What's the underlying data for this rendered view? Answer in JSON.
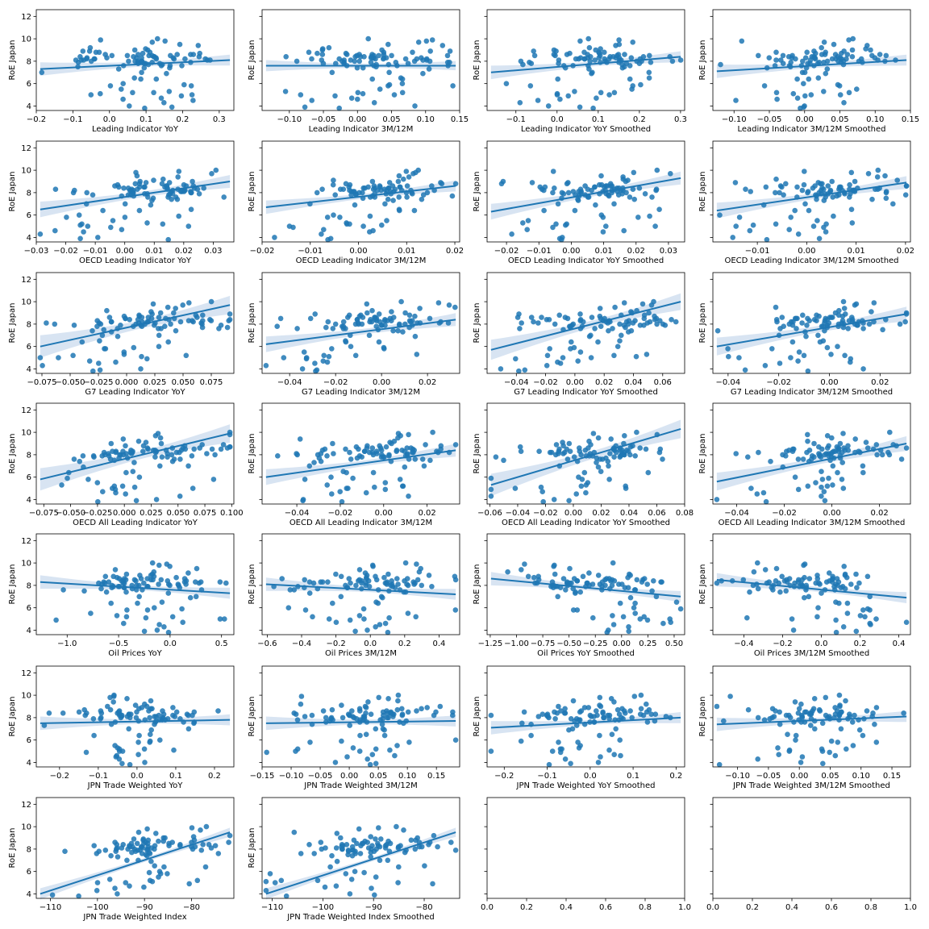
{
  "chart_data": {
    "type": "scatter",
    "grid": false,
    "series_color": "#1f77b4",
    "band_color": "#c8d9ec",
    "shared_ylabel": "RoE Japan",
    "shared_ylim": [
      3.6,
      12.6
    ],
    "shared_yticks": [
      4,
      6,
      8,
      10,
      12
    ],
    "panels": [
      {
        "xlabel": "Leading Indicator YoY",
        "xlim": [
          -0.2,
          0.34
        ],
        "xticks": [
          -0.2,
          -0.1,
          0.0,
          0.1,
          0.2,
          0.3
        ],
        "xticklabels": [
          "−0.2",
          "−0.1",
          "0.0",
          "0.1",
          "0.2",
          "0.3"
        ],
        "fit": [
          7.3,
          8.1
        ],
        "band": 0.6
      },
      {
        "xlabel": "Leading Indicator 3M/12M",
        "xlim": [
          -0.14,
          0.15
        ],
        "xticks": [
          -0.1,
          -0.05,
          0.0,
          0.05,
          0.1,
          0.15
        ],
        "xticklabels": [
          "−0.10",
          "−0.05",
          "0.00",
          "0.05",
          "0.10",
          "0.15"
        ],
        "fit": [
          7.6,
          7.6
        ],
        "band": 0.5
      },
      {
        "xlabel": "Leading Indicator YoY Smoothed",
        "xlim": [
          -0.17,
          0.31
        ],
        "xticks": [
          -0.1,
          0.0,
          0.1,
          0.2,
          0.3
        ],
        "xticklabels": [
          "−0.1",
          "0.0",
          "0.1",
          "0.2",
          "0.3"
        ],
        "fit": [
          7.0,
          8.4
        ],
        "band": 0.6
      },
      {
        "xlabel": "Leading Indicator 3M/12M Smoothed",
        "xlim": [
          -0.13,
          0.15
        ],
        "xticks": [
          -0.1,
          -0.05,
          0.0,
          0.05,
          0.1,
          0.15
        ],
        "xticklabels": [
          "−0.10",
          "−0.05",
          "0.00",
          "0.05",
          "0.10",
          "0.15"
        ],
        "fit": [
          7.1,
          8.1
        ],
        "band": 0.6
      },
      {
        "xlabel": "OECD Leading Indicator YoY",
        "xlim": [
          -0.03,
          0.037
        ],
        "xticks": [
          -0.03,
          -0.02,
          -0.01,
          0.0,
          0.01,
          0.02,
          0.03
        ],
        "xticklabels": [
          "−0.03",
          "−0.02",
          "−0.01",
          "0.00",
          "0.01",
          "0.02",
          "0.03"
        ],
        "fit": [
          6.5,
          9.0
        ],
        "band": 0.7
      },
      {
        "xlabel": "OECD Leading Indicator 3M/12M",
        "xlim": [
          -0.02,
          0.021
        ],
        "xticks": [
          -0.02,
          -0.01,
          0.0,
          0.01,
          0.02
        ],
        "xticklabels": [
          "−0.02",
          "−0.01",
          "0.00",
          "0.01",
          "0.02"
        ],
        "fit": [
          6.7,
          8.6
        ],
        "band": 0.6
      },
      {
        "xlabel": "OECD Leading Indicator YoY Smoothed",
        "xlim": [
          -0.026,
          0.035
        ],
        "xticks": [
          -0.02,
          -0.01,
          0.0,
          0.01,
          0.02,
          0.03
        ],
        "xticklabels": [
          "−0.02",
          "−0.01",
          "0.00",
          "0.01",
          "0.02",
          "0.03"
        ],
        "fit": [
          6.3,
          9.3
        ],
        "band": 0.7
      },
      {
        "xlabel": "OECD Leading Indicator 3M/12M Smoothed",
        "xlim": [
          -0.019,
          0.021
        ],
        "xticks": [
          -0.01,
          0.0,
          0.01,
          0.02
        ],
        "xticklabels": [
          "−0.01",
          "0.00",
          "0.01",
          "0.02"
        ],
        "fit": [
          6.4,
          8.9
        ],
        "band": 0.7
      },
      {
        "xlabel": "G7 Leading Indicator YoY",
        "xlim": [
          -0.08,
          0.095
        ],
        "xticks": [
          -0.075,
          -0.05,
          -0.025,
          0.0,
          0.025,
          0.05,
          0.075
        ],
        "xticklabels": [
          "−0.075",
          "−0.050",
          "−0.025",
          "0.000",
          "0.025",
          "0.050",
          "0.075"
        ],
        "fit": [
          6.0,
          9.7
        ],
        "band": 1.0
      },
      {
        "xlabel": "G7 Leading Indicator 3M/12M",
        "xlim": [
          -0.052,
          0.034
        ],
        "xticks": [
          -0.04,
          -0.02,
          0.0,
          0.02
        ],
        "xticklabels": [
          "−0.04",
          "−0.02",
          "0.00",
          "0.02"
        ],
        "fit": [
          6.2,
          8.4
        ],
        "band": 0.7
      },
      {
        "xlabel": "G7 Leading Indicator YoY Smoothed",
        "xlim": [
          -0.06,
          0.075
        ],
        "xticks": [
          -0.04,
          -0.02,
          0.0,
          0.02,
          0.04,
          0.06
        ],
        "xticklabels": [
          "−0.04",
          "−0.02",
          "0.00",
          "0.02",
          "0.04",
          "0.06"
        ],
        "fit": [
          5.7,
          10.0
        ],
        "band": 0.9
      },
      {
        "xlabel": "G7 Leading Indicator 3M/12M Smoothed",
        "xlim": [
          -0.046,
          0.032
        ],
        "xticks": [
          -0.04,
          -0.02,
          0.0,
          0.02
        ],
        "xticklabels": [
          "−0.04",
          "−0.02",
          "0.00",
          "0.02"
        ],
        "fit": [
          6.0,
          8.9
        ],
        "band": 0.8
      },
      {
        "xlabel": "OECD All Leading Indicator YoY",
        "xlim": [
          -0.082,
          0.102
        ],
        "xticks": [
          -0.075,
          -0.05,
          -0.025,
          0.0,
          0.025,
          0.05,
          0.075,
          0.1
        ],
        "xticklabels": [
          "−0.075",
          "−0.050",
          "−0.025",
          "0.000",
          "0.025",
          "0.050",
          "0.075",
          "0.100"
        ],
        "fit": [
          5.8,
          9.9
        ],
        "band": 1.0
      },
      {
        "xlabel": "OECD All Leading Indicator 3M/12M",
        "xlim": [
          -0.056,
          0.035
        ],
        "xticks": [
          -0.04,
          -0.02,
          0.0,
          0.02
        ],
        "xticklabels": [
          "−0.04",
          "−0.02",
          "0.00",
          "0.02"
        ],
        "fit": [
          6.0,
          8.4
        ],
        "band": 0.7
      },
      {
        "xlabel": "OECD All Leading Indicator YoY Smoothed",
        "xlim": [
          -0.062,
          0.08
        ],
        "xticks": [
          -0.06,
          -0.04,
          -0.02,
          0.0,
          0.02,
          0.04,
          0.06,
          0.08
        ],
        "xticklabels": [
          "−0.06",
          "−0.04",
          "−0.02",
          "0.00",
          "0.02",
          "0.04",
          "0.06",
          "0.08"
        ],
        "fit": [
          5.3,
          10.3
        ],
        "band": 1.0
      },
      {
        "xlabel": "OECD All Leading Indicator 3M/12M Smoothed",
        "xlim": [
          -0.05,
          0.033
        ],
        "xticks": [
          -0.04,
          -0.02,
          0.0,
          0.02
        ],
        "xticklabels": [
          "−0.04",
          "−0.02",
          "0.00",
          "0.02"
        ],
        "fit": [
          5.6,
          9.0
        ],
        "band": 0.8
      },
      {
        "xlabel": "Oil Prices YoY",
        "xlim": [
          -1.3,
          0.62
        ],
        "xticks": [
          -1.0,
          -0.5,
          0.0,
          0.5
        ],
        "xticklabels": [
          "−1.0",
          "−0.5",
          "0.0",
          "0.5"
        ],
        "fit": [
          8.3,
          7.3
        ],
        "band": 0.6
      },
      {
        "xlabel": "Oil Prices 3M/12M",
        "xlim": [
          -0.63,
          0.52
        ],
        "xticks": [
          -0.6,
          -0.4,
          -0.2,
          0.0,
          0.2,
          0.4
        ],
        "xticklabels": [
          "−0.6",
          "−0.4",
          "−0.2",
          "0.0",
          "0.2",
          "0.4"
        ],
        "fit": [
          8.1,
          7.2
        ],
        "band": 0.6
      },
      {
        "xlabel": "Oil Prices YoY Smoothed",
        "xlim": [
          -1.28,
          0.6
        ],
        "xticks": [
          -1.25,
          -1.0,
          -0.75,
          -0.5,
          -0.25,
          0.0,
          0.25,
          0.5
        ],
        "xticklabels": [
          "−1.25",
          "−1.00",
          "−0.75",
          "−0.50",
          "−0.25",
          "0.00",
          "0.25",
          "0.50"
        ],
        "fit": [
          8.6,
          7.0
        ],
        "band": 0.6
      },
      {
        "xlabel": "Oil Prices 3M/12M Smoothed",
        "xlim": [
          -0.56,
          0.46
        ],
        "xticks": [
          -0.4,
          -0.2,
          0.0,
          0.2,
          0.4
        ],
        "xticklabels": [
          "−0.4",
          "−0.2",
          "0.0",
          "0.2",
          "0.4"
        ],
        "fit": [
          8.5,
          6.9
        ],
        "band": 0.6
      },
      {
        "xlabel": "JPN Trade Weighted YoY",
        "xlim": [
          -0.26,
          0.25
        ],
        "xticks": [
          -0.2,
          -0.1,
          0.0,
          0.1,
          0.2
        ],
        "xticklabels": [
          "−0.2",
          "−0.1",
          "0.0",
          "0.1",
          "0.2"
        ],
        "fit": [
          7.5,
          7.8
        ],
        "band": 0.6
      },
      {
        "xlabel": "JPN Trade Weighted 3M/12M",
        "xlim": [
          -0.15,
          0.19
        ],
        "xticks": [
          -0.15,
          -0.1,
          -0.05,
          0.0,
          0.05,
          0.1,
          0.15
        ],
        "xticklabels": [
          "−0.15",
          "−0.10",
          "−0.05",
          "0.00",
          "0.05",
          "0.10",
          "0.15"
        ],
        "fit": [
          7.5,
          7.7
        ],
        "band": 0.6
      },
      {
        "xlabel": "JPN Trade Weighted YoY Smoothed",
        "xlim": [
          -0.24,
          0.22
        ],
        "xticks": [
          -0.2,
          -0.1,
          0.0,
          0.1,
          0.2
        ],
        "xticklabels": [
          "−0.2",
          "−0.1",
          "0.0",
          "0.1",
          "0.2"
        ],
        "fit": [
          7.1,
          8.0
        ],
        "band": 0.6
      },
      {
        "xlabel": "JPN Trade Weighted 3M/12M Smoothed",
        "xlim": [
          -0.14,
          0.18
        ],
        "xticks": [
          -0.1,
          -0.05,
          0.0,
          0.05,
          0.1,
          0.15
        ],
        "xticklabels": [
          "−0.10",
          "−0.05",
          "0.00",
          "0.05",
          "0.10",
          "0.15"
        ],
        "fit": [
          7.4,
          8.1
        ],
        "band": 0.6
      },
      {
        "xlabel": "JPN Trade Weighted Index",
        "xlim": [
          -113,
          -71
        ],
        "xticks": [
          -110,
          -100,
          -90,
          -80
        ],
        "xticklabels": [
          "−110",
          "−100",
          "−90",
          "−80"
        ],
        "fit": [
          4.0,
          9.5
        ],
        "band": 0.5
      },
      {
        "xlabel": "JPN Trade Weighted Index Smoothed",
        "xlim": [
          -112,
          -73
        ],
        "xticks": [
          -110,
          -100,
          -90,
          -80
        ],
        "xticklabels": [
          "−110",
          "−100",
          "−90",
          "−80"
        ],
        "fit": [
          4.0,
          9.5
        ],
        "band": 0.5
      },
      {
        "xlabel": "",
        "empty": true,
        "xlim": [
          0,
          1
        ],
        "xticks": [
          0,
          0.2,
          0.4,
          0.6,
          0.8,
          1.0
        ],
        "xticklabels": [
          "0.0",
          "0.2",
          "0.4",
          "0.6",
          "0.8",
          "1.0"
        ]
      },
      {
        "xlabel": "",
        "empty": true,
        "xlim": [
          0,
          1
        ],
        "xticks": [
          0,
          0.2,
          0.4,
          0.6,
          0.8,
          1.0
        ],
        "xticklabels": [
          "0.0",
          "0.2",
          "0.4",
          "0.6",
          "0.8",
          "1.0"
        ]
      }
    ],
    "roe_values": [
      8.2,
      8.5,
      8.8,
      9.1,
      9.4,
      9.7,
      9.9,
      10.0,
      9.8,
      9.5,
      9.2,
      8.9,
      8.6,
      8.3,
      8.0,
      7.8,
      7.6,
      7.9,
      8.2,
      8.4,
      8.6,
      8.3,
      8.0,
      7.7,
      7.5,
      7.3,
      7.6,
      7.9,
      8.1,
      8.4,
      8.7,
      9.0,
      8.8,
      8.5,
      8.2,
      7.9,
      7.6,
      7.4,
      7.0,
      6.9,
      6.5,
      6.4,
      6.0,
      5.8,
      5.9,
      5.5,
      5.2,
      5.0,
      5.3,
      5.1,
      4.9,
      4.7,
      4.5,
      4.6,
      4.3,
      4.0,
      3.8,
      3.9,
      5.0,
      5.2,
      5.8,
      6.4,
      7.0,
      7.4,
      7.8,
      8.0,
      8.2,
      8.4,
      8.6,
      8.5,
      8.3,
      8.1,
      8.0,
      8.2,
      8.4,
      8.6,
      8.3,
      8.1,
      7.9,
      7.7,
      8.0,
      8.3,
      8.5,
      8.7,
      8.9,
      9.0,
      8.8,
      8.6,
      8.4,
      8.2,
      8.0,
      7.8,
      8.1,
      8.3,
      8.5,
      8.2,
      7.9,
      7.6,
      7.8,
      8.1
    ]
  }
}
